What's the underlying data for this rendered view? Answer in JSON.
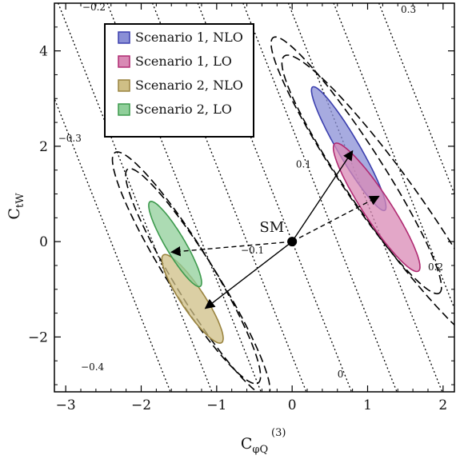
{
  "chart_data": {
    "type": "contour",
    "xlabel_main": "C",
    "xlabel_sup": "(3)",
    "xlabel_sub": "φQ",
    "ylabel_main": "C",
    "ylabel_sub": "tW",
    "xlim": [
      -3.15,
      2.15
    ],
    "ylim": [
      -3.15,
      5.0
    ],
    "x_ticks": [
      -3,
      -2,
      -1,
      0,
      1,
      2
    ],
    "x_tick_labels": [
      "−3",
      "−2",
      "−1",
      "0",
      "1",
      "2"
    ],
    "y_ticks": [
      -2,
      0,
      2,
      4
    ],
    "y_tick_labels": [
      "−2",
      "0",
      "2",
      "4"
    ],
    "legend": [
      {
        "label": "Scenario 1, NLO",
        "fill": "#8a8fd6",
        "stroke": "#3b3fae"
      },
      {
        "label": "Scenario 1, LO",
        "fill": "#d98ab5",
        "stroke": "#b02a72"
      },
      {
        "label": "Scenario 2, NLO",
        "fill": "#cfbf86",
        "stroke": "#9a8440"
      },
      {
        "label": "Scenario 2, LO",
        "fill": "#90cf9a",
        "stroke": "#3d9a4d"
      }
    ],
    "contour_lines": [
      {
        "label": "-0.4",
        "slope": -4,
        "x_at_y0": -2.4
      },
      {
        "label": "-0.3",
        "slope": -4,
        "x_at_y0": -1.85
      },
      {
        "label": "-0.2",
        "slope": -4,
        "x_at_y0": -1.2
      },
      {
        "label": "-0.1",
        "slope": -4,
        "x_at_y0": -0.6
      },
      {
        "label": "0",
        "slope": -4,
        "x_at_y0": 0.0
      },
      {
        "label": "0.1",
        "slope": -4,
        "x_at_y0": 0.6
      },
      {
        "label": "0.2",
        "slope": -4,
        "x_at_y0": 1.2
      },
      {
        "label": "0.3",
        "slope": -4,
        "x_at_y0": 1.8
      },
      {
        "label": "",
        "slope": -4,
        "x_at_y0": 2.4
      }
    ],
    "contour_label_positions": [
      {
        "text": "−0.2",
        "x": -2.78,
        "y": 4.85
      },
      {
        "text": "0.3",
        "x": 1.44,
        "y": 4.8
      },
      {
        "text": "0.1",
        "x": 0.05,
        "y": 1.55
      },
      {
        "text": "−0.3",
        "x": -3.1,
        "y": 2.1
      },
      {
        "text": "−0.1",
        "x": -0.68,
        "y": -0.25
      },
      {
        "text": "0.2",
        "x": 1.8,
        "y": -0.6
      },
      {
        "text": "−0.4",
        "x": -2.8,
        "y": -2.7
      },
      {
        "text": "0",
        "x": 0.6,
        "y": -2.85
      }
    ],
    "sm_point": {
      "x": 0,
      "y": 0,
      "label": "SM"
    },
    "arrows": [
      {
        "from": [
          0,
          0
        ],
        "to": [
          0.8,
          1.9
        ],
        "style": "solid"
      },
      {
        "from": [
          0,
          0
        ],
        "to": [
          -1.15,
          -1.4
        ],
        "style": "solid"
      },
      {
        "from": [
          0,
          0
        ],
        "to": [
          1.15,
          0.95
        ],
        "style": "dashed"
      },
      {
        "from": [
          0,
          0
        ],
        "to": [
          -1.6,
          -0.22
        ],
        "style": "dashed"
      }
    ],
    "regions": [
      {
        "name": "Scenario 1, NLO",
        "cx": 0.75,
        "cy": 1.95,
        "semi_major": 1.38,
        "semi_minor": 0.155,
        "angle_deg": -70,
        "fill": "#8a8fd6",
        "stroke": "#3b3fae"
      },
      {
        "name": "Scenario 1, LO",
        "cx": 1.12,
        "cy": 0.72,
        "semi_major": 1.45,
        "semi_minor": 0.2,
        "angle_deg": -68,
        "fill": "#d98ab5",
        "stroke": "#b02a72"
      },
      {
        "name": "Scenario 2, NLO",
        "cx": -1.32,
        "cy": -1.2,
        "semi_major": 1.0,
        "semi_minor": 0.17,
        "angle_deg": -68,
        "fill": "#cfbf86",
        "stroke": "#9a8440"
      },
      {
        "name": "Scenario 2, LO",
        "cx": -1.55,
        "cy": -0.05,
        "semi_major": 0.95,
        "semi_minor": 0.14,
        "angle_deg": -70,
        "fill": "#90cf9a",
        "stroke": "#3d9a4d"
      }
    ],
    "dashed_ellipses": [
      {
        "cx": 0.85,
        "cy": 1.6,
        "semi_major": 2.9,
        "semi_minor": 0.33,
        "angle_deg": -68
      },
      {
        "cx": 1.3,
        "cy": 0.8,
        "semi_major": 3.4,
        "semi_minor": 0.42,
        "angle_deg": -66
      },
      {
        "cx": -1.4,
        "cy": -0.55,
        "semi_major": 2.6,
        "semi_minor": 0.33,
        "angle_deg": -69
      },
      {
        "cx": -1.25,
        "cy": -0.85,
        "semi_major": 2.55,
        "semi_minor": 0.3,
        "angle_deg": -69
      }
    ]
  }
}
